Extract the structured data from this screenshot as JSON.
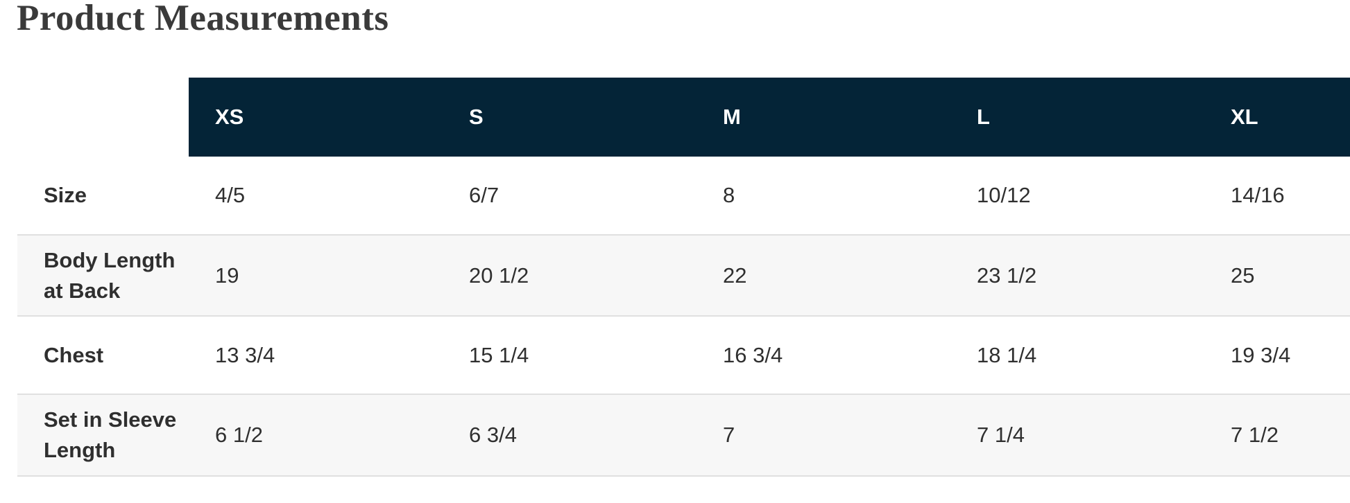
{
  "page": {
    "title": "Product Measurements"
  },
  "table": {
    "columns": [
      "XS",
      "S",
      "M",
      "L",
      "XL"
    ],
    "rows": [
      {
        "label": "Size",
        "values": [
          "4/5",
          "6/7",
          "8",
          "10/12",
          "14/16"
        ]
      },
      {
        "label": "Body Length at Back",
        "values": [
          "19",
          "20 1/2",
          "22",
          "23 1/2",
          "25"
        ]
      },
      {
        "label": "Chest",
        "values": [
          "13 3/4",
          "15 1/4",
          "16 3/4",
          "18 1/4",
          "19 3/4"
        ]
      },
      {
        "label": "Set in Sleeve Length",
        "values": [
          "6 1/2",
          "6 3/4",
          "7",
          "7 1/4",
          "7 1/2"
        ]
      }
    ]
  },
  "colors": {
    "header_background": "#042437",
    "header_text": "#ffffff",
    "alt_row_background": "#f7f7f7",
    "row_border": "#e0e0e0",
    "title_text": "#3a3a3a",
    "body_text": "#2f2f2f",
    "page_background": "#ffffff"
  }
}
